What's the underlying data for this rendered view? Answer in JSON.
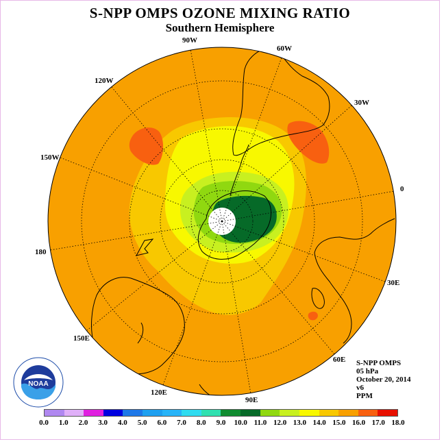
{
  "title": "S-NPP OMPS OZONE MIXING RATIO",
  "subtitle": "Southern Hemisphere",
  "longitude_labels": [
    "90W",
    "60W",
    "30W",
    "0",
    "30E",
    "60E",
    "90E",
    "120E",
    "150E",
    "180",
    "150W",
    "120W"
  ],
  "info": {
    "line1": "S-NPP OMPS",
    "line2": "05 hPa",
    "line3": "October 20, 2014",
    "line4": "v6",
    "line5": "PPM"
  },
  "logo_text": "NOAA",
  "colorbar": {
    "labels": [
      "0.0",
      "1.0",
      "2.0",
      "3.0",
      "4.0",
      "5.0",
      "6.0",
      "7.0",
      "8.0",
      "9.0",
      "10.0",
      "11.0",
      "12.0",
      "13.0",
      "14.0",
      "15.0",
      "16.0",
      "17.0",
      "18.0"
    ],
    "colors": [
      "#b088f0",
      "#e0b0f8",
      "#e020e0",
      "#0000e0",
      "#1e78e8",
      "#1ea0f0",
      "#28b4f8",
      "#30dcf0",
      "#30e0b0",
      "#108c30",
      "#066a28",
      "#90d810",
      "#c8f020",
      "#f8f800",
      "#f8c800",
      "#f8a000",
      "#f86010",
      "#e81000",
      "#8c5028"
    ]
  }
}
